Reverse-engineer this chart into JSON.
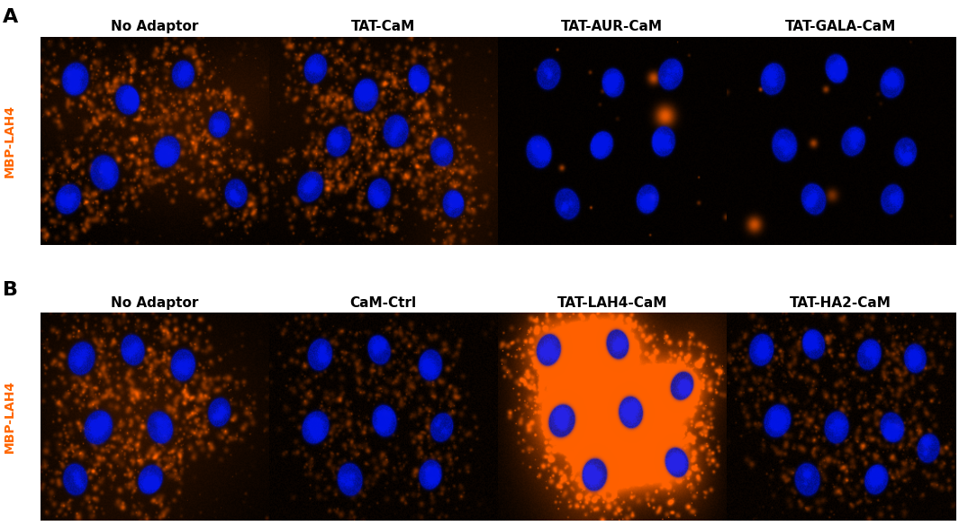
{
  "panel_A_label": "A",
  "panel_B_label": "B",
  "row_A_titles": [
    "No Adaptor",
    "TAT-CaM",
    "TAT-AUR-CaM",
    "TAT-GALA-CaM"
  ],
  "row_B_titles": [
    "No Adaptor",
    "CaM-Ctrl",
    "TAT-LAH4-CaM",
    "TAT-HA2-CaM"
  ],
  "y_label": "MBP-LAH4",
  "y_label_color": "#FF6600",
  "title_fontsize": 11,
  "panel_label_fontsize": 16,
  "ylabel_fontsize": 10,
  "background_color": "#000000",
  "outer_background": "#ffffff",
  "figsize": [
    10.65,
    5.84
  ],
  "dpi": 100
}
